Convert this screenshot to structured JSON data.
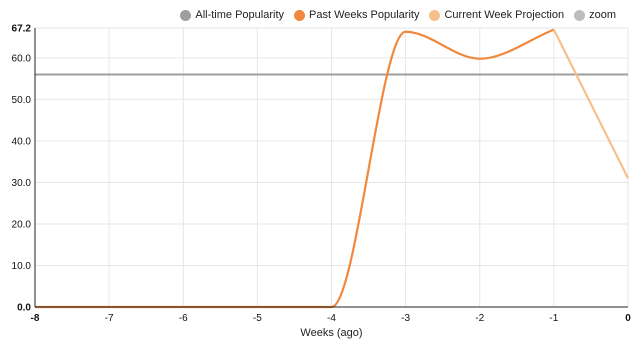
{
  "colors": {
    "alltime": "#9e9e9e",
    "past": "#f0883e",
    "projection": "#f6c08a",
    "zoom": "#bdbdbd",
    "grid": "#e6e6e6",
    "axis": "#222222"
  },
  "legend": [
    {
      "label": "All-time Popularity",
      "color": "#9e9e9e"
    },
    {
      "label": "Past Weeks Popularity",
      "color": "#f0883e"
    },
    {
      "label": "Current Week Projection",
      "color": "#f6c08a"
    },
    {
      "label": "zoom",
      "color": "#bdbdbd"
    }
  ],
  "chart_data": {
    "type": "line",
    "xlabel": "Weeks (ago)",
    "ylabel": "",
    "xlim": [
      -8,
      0
    ],
    "ylim": [
      0,
      67.2
    ],
    "x_ticks": [
      "-8",
      "-7",
      "-6",
      "-5",
      "-4",
      "-3",
      "-2",
      "-1",
      "0"
    ],
    "y_ticks": [
      "0.0",
      "10.0",
      "20.0",
      "30.0",
      "40.0",
      "50.0",
      "60.0",
      "67.2"
    ],
    "grid": true,
    "legend_position": "top-right",
    "series": [
      {
        "name": "All-time Popularity",
        "type": "horizontal-line",
        "value": 56.0
      },
      {
        "name": "Past Weeks Popularity",
        "x": [
          -8,
          -7,
          -6,
          -5,
          -4,
          -3,
          -2,
          -1
        ],
        "values": [
          0,
          0,
          0,
          0,
          0,
          66.3,
          59.8,
          66.8
        ]
      },
      {
        "name": "Current Week Projection",
        "x": [
          -1,
          0
        ],
        "values": [
          66.8,
          31.0
        ]
      }
    ]
  }
}
